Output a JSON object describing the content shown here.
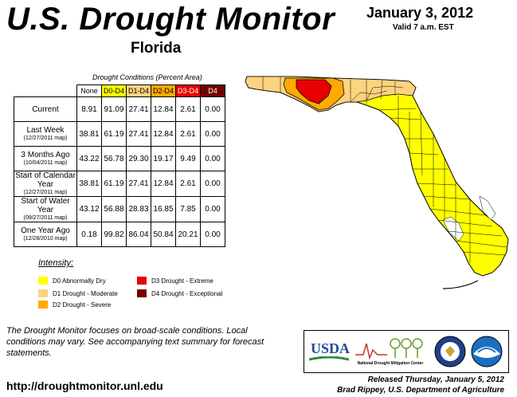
{
  "header": {
    "title": "U.S. Drought Monitor",
    "region": "Florida",
    "date": "January 3, 2012",
    "valid": "Valid 7 a.m. EST"
  },
  "table": {
    "caption": "Drought Conditions (Percent Area)",
    "columns": [
      "None",
      "D0-D4",
      "D1-D4",
      "D2-D4",
      "D3-D4",
      "D4"
    ],
    "rows": [
      {
        "label": "Current",
        "sub": "",
        "values": [
          "8.91",
          "91.09",
          "27.41",
          "12.84",
          "2.61",
          "0.00"
        ]
      },
      {
        "label": "Last Week",
        "sub": "(12/27/2011 map)",
        "values": [
          "38.81",
          "61.19",
          "27.41",
          "12.84",
          "2.61",
          "0.00"
        ]
      },
      {
        "label": "3 Months Ago",
        "sub": "(10/04/2011 map)",
        "values": [
          "43.22",
          "56.78",
          "29.30",
          "19.17",
          "9.49",
          "0.00"
        ]
      },
      {
        "label": "Start of Calendar Year",
        "sub": "(12/27/2011 map)",
        "values": [
          "38.81",
          "61.19",
          "27.41",
          "12.84",
          "2.61",
          "0.00"
        ]
      },
      {
        "label": "Start of Water Year",
        "sub": "(09/27/2011 map)",
        "values": [
          "43.12",
          "56.88",
          "28.83",
          "16.85",
          "7.85",
          "0.00"
        ]
      },
      {
        "label": "One Year Ago",
        "sub": "(12/28/2010 map)",
        "values": [
          "0.18",
          "99.82",
          "86.04",
          "50.84",
          "20.21",
          "0.00"
        ]
      }
    ]
  },
  "legend": {
    "title": "Intensity:",
    "items": [
      {
        "label": "D0 Abnormally Dry",
        "color": "#ffff00"
      },
      {
        "label": "D1 Drought - Moderate",
        "color": "#fcd37f"
      },
      {
        "label": "D2 Drought - Severe",
        "color": "#ffaa00"
      },
      {
        "label": "D3 Drought - Extreme",
        "color": "#e60000"
      },
      {
        "label": "D4 Drought - Exceptional",
        "color": "#730000"
      }
    ]
  },
  "footer": {
    "note": "The Drought Monitor focuses on broad-scale conditions. Local conditions may vary. See accompanying text summary for forecast statements.",
    "url": "http://droughtmonitor.unl.edu",
    "released": "Released Thursday, January 5, 2012",
    "author": "Brad Rippey, U.S. Department of Agriculture"
  },
  "logos": {
    "usda": "USDA",
    "ndmc": "National Drought Mitigation Center"
  }
}
